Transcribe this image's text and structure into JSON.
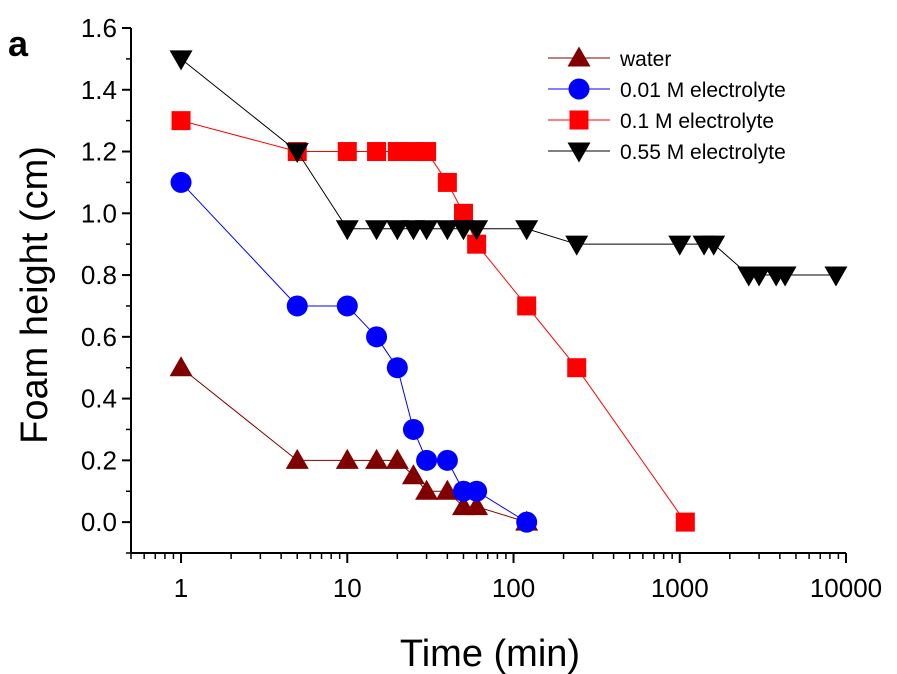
{
  "panel_label": "a",
  "chart_data": {
    "type": "line",
    "xlabel": "Time (min)",
    "ylabel": "Foam height (cm)",
    "xscale": "log",
    "xlim": [
      0.5,
      10000
    ],
    "ylim": [
      -0.1,
      1.6
    ],
    "x_ticks": [
      1,
      10,
      100,
      1000,
      10000
    ],
    "x_tick_labels": [
      "1",
      "10",
      "100",
      "1000",
      "10000"
    ],
    "y_ticks": [
      0.0,
      0.2,
      0.4,
      0.6,
      0.8,
      1.0,
      1.2,
      1.4,
      1.6
    ],
    "y_tick_labels": [
      "0.0",
      "0.2",
      "0.4",
      "0.6",
      "0.8",
      "1.0",
      "1.2",
      "1.4",
      "1.6"
    ],
    "legend_position": "top-right",
    "series": [
      {
        "name": "water",
        "color": "#800000",
        "marker": "triangle-up",
        "points": [
          [
            1,
            0.5
          ],
          [
            5,
            0.2
          ],
          [
            10,
            0.2
          ],
          [
            15,
            0.2
          ],
          [
            20,
            0.2
          ],
          [
            25,
            0.15
          ],
          [
            30,
            0.1
          ],
          [
            40,
            0.1
          ],
          [
            50,
            0.05
          ],
          [
            60,
            0.05
          ],
          [
            120,
            0.0
          ]
        ]
      },
      {
        "name": "0.01 M electrolyte",
        "color": "#0000ff",
        "marker": "circle",
        "points": [
          [
            1,
            1.1
          ],
          [
            5,
            0.7
          ],
          [
            10,
            0.7
          ],
          [
            15,
            0.6
          ],
          [
            20,
            0.5
          ],
          [
            25,
            0.3
          ],
          [
            30,
            0.2
          ],
          [
            40,
            0.2
          ],
          [
            50,
            0.1
          ],
          [
            60,
            0.1
          ],
          [
            120,
            0.0
          ]
        ]
      },
      {
        "name": "0.1 M electrolyte",
        "color": "#ff0000",
        "marker": "square",
        "points": [
          [
            1,
            1.3
          ],
          [
            5,
            1.2
          ],
          [
            10,
            1.2
          ],
          [
            15,
            1.2
          ],
          [
            20,
            1.2
          ],
          [
            25,
            1.2
          ],
          [
            30,
            1.2
          ],
          [
            40,
            1.1
          ],
          [
            50,
            1.0
          ],
          [
            60,
            0.9
          ],
          [
            120,
            0.7
          ],
          [
            240,
            0.5
          ],
          [
            1080,
            0.0
          ]
        ]
      },
      {
        "name": "0.55 M electrolyte",
        "color": "#000000",
        "marker": "triangle-down",
        "points": [
          [
            1,
            1.5
          ],
          [
            5,
            1.2
          ],
          [
            10,
            0.95
          ],
          [
            15,
            0.95
          ],
          [
            20,
            0.95
          ],
          [
            25,
            0.95
          ],
          [
            30,
            0.95
          ],
          [
            40,
            0.95
          ],
          [
            50,
            0.95
          ],
          [
            60,
            0.95
          ],
          [
            120,
            0.95
          ],
          [
            240,
            0.9
          ],
          [
            1000,
            0.9
          ],
          [
            1400,
            0.9
          ],
          [
            1600,
            0.9
          ],
          [
            2600,
            0.8
          ],
          [
            3000,
            0.8
          ],
          [
            3800,
            0.8
          ],
          [
            4300,
            0.8
          ],
          [
            8700,
            0.8
          ]
        ]
      }
    ]
  }
}
